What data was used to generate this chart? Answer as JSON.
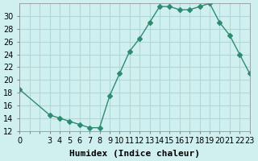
{
  "x": [
    0,
    3,
    4,
    5,
    6,
    7,
    8,
    9,
    10,
    11,
    12,
    13,
    14,
    15,
    16,
    17,
    18,
    19,
    20,
    21,
    22,
    23
  ],
  "y": [
    18.5,
    14.5,
    14.0,
    13.5,
    13.0,
    12.5,
    12.5,
    17.5,
    21.0,
    24.5,
    26.5,
    29.0,
    31.5,
    31.5,
    31.0,
    31.0,
    31.5,
    32.0,
    29.0,
    27.0,
    24.0,
    21.0
  ],
  "line_color": "#2e8b70",
  "marker": "D",
  "marker_size": 3,
  "bg_color": "#d0f0f0",
  "grid_color": "#b0d8d8",
  "xlabel": "Humidex (Indice chaleur)",
  "xlim": [
    0,
    23
  ],
  "ylim": [
    12,
    32
  ],
  "yticks": [
    12,
    14,
    16,
    18,
    20,
    22,
    24,
    26,
    28,
    30
  ],
  "xlabel_fontsize": 8,
  "tick_fontsize": 7
}
